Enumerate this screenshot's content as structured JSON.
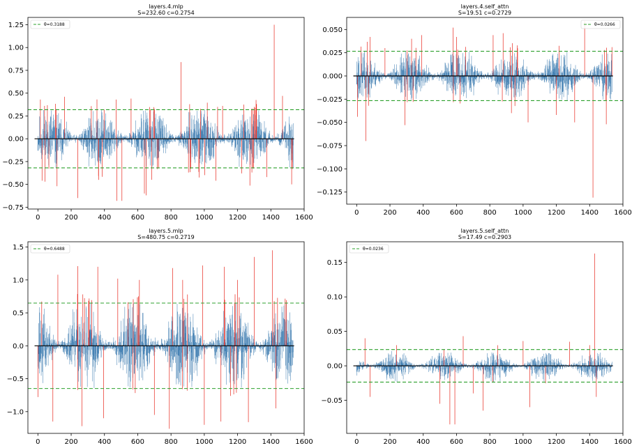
{
  "colors": {
    "signal": "#4682b4",
    "exceed": "#e8281e",
    "threshold": "#2ca02c",
    "zero": "#000000"
  },
  "chart_data": [
    {
      "type": "line",
      "title": "layers.4.mlp",
      "subtitle": "S=232.60 c=0.2754",
      "legend": "θ=0.3188",
      "legend_position": "top-left",
      "threshold": 0.3188,
      "n": 1536,
      "xlim": [
        -60,
        1600
      ],
      "ylim": [
        -0.77,
        1.33
      ],
      "xticks": [
        0,
        200,
        400,
        600,
        800,
        1000,
        1200,
        1400,
        1600
      ],
      "yticks": [
        -0.75,
        -0.5,
        -0.25,
        0.0,
        0.25,
        0.5,
        0.75,
        1.0,
        1.25
      ],
      "ytick_labels": [
        "−0.75",
        "−0.50",
        "−0.25",
        "0.00",
        "0.25",
        "0.50",
        "0.75",
        "1.00",
        "1.25"
      ],
      "amplitude": 0.19,
      "peaks": [
        [
          15,
          0.43
        ],
        [
          25,
          -0.46
        ],
        [
          40,
          0.36
        ],
        [
          115,
          -0.52
        ],
        [
          160,
          0.46
        ],
        [
          240,
          -0.65
        ],
        [
          365,
          -0.45
        ],
        [
          470,
          0.43
        ],
        [
          475,
          -0.68
        ],
        [
          505,
          -0.68
        ],
        [
          560,
          0.44
        ],
        [
          640,
          -0.6
        ],
        [
          650,
          -0.62
        ],
        [
          860,
          0.84
        ],
        [
          905,
          -0.37
        ],
        [
          1070,
          -0.46
        ],
        [
          1080,
          0.35
        ],
        [
          1110,
          0.36
        ],
        [
          1225,
          -0.38
        ],
        [
          1375,
          -0.42
        ],
        [
          1420,
          1.25
        ],
        [
          1470,
          0.47
        ],
        [
          1525,
          -0.5
        ]
      ],
      "seed": 11
    },
    {
      "type": "line",
      "title": "layers.4.self_attn",
      "subtitle": "S=19.51 c=0.2729",
      "legend": "θ=0.0266",
      "legend_position": "top-right",
      "threshold": 0.0266,
      "n": 1536,
      "xlim": [
        -60,
        1600
      ],
      "ylim": [
        -0.138,
        0.063
      ],
      "xticks": [
        0,
        200,
        400,
        600,
        800,
        1000,
        1200,
        1400,
        1600
      ],
      "yticks": [
        -0.125,
        -0.1,
        -0.075,
        -0.05,
        -0.025,
        0.0,
        0.025,
        0.05
      ],
      "ytick_labels": [
        "−0.125",
        "−0.100",
        "−0.075",
        "−0.050",
        "−0.025",
        "0.000",
        "0.025",
        "0.050"
      ],
      "amplitude": 0.015,
      "peaks": [
        [
          5,
          -0.044
        ],
        [
          55,
          -0.07
        ],
        [
          80,
          0.042
        ],
        [
          170,
          0.03
        ],
        [
          290,
          -0.053
        ],
        [
          330,
          0.04
        ],
        [
          390,
          0.044
        ],
        [
          580,
          0.052
        ],
        [
          600,
          0.042
        ],
        [
          820,
          0.044
        ],
        [
          880,
          0.046
        ],
        [
          930,
          -0.04
        ],
        [
          1030,
          -0.05
        ],
        [
          1200,
          -0.042
        ],
        [
          1310,
          -0.05
        ],
        [
          1370,
          0.059
        ],
        [
          1420,
          -0.131
        ],
        [
          1500,
          -0.052
        ]
      ],
      "seed": 23
    },
    {
      "type": "line",
      "title": "layers.5.mlp",
      "subtitle": "S=480.75 c=0.2719",
      "legend": "θ=0.6488",
      "legend_position": "top-left",
      "threshold": 0.6488,
      "n": 1536,
      "xlim": [
        -60,
        1600
      ],
      "ylim": [
        -1.33,
        1.58
      ],
      "xticks": [
        0,
        200,
        400,
        600,
        800,
        1000,
        1200,
        1400,
        1600
      ],
      "yticks": [
        -1.0,
        -0.5,
        0.0,
        0.5,
        1.0,
        1.5
      ],
      "ytick_labels": [
        "−1.0",
        "−0.5",
        "0.0",
        "0.5",
        "1.0",
        "1.5"
      ],
      "amplitude": 0.36,
      "peaks": [
        [
          90,
          -1.15
        ],
        [
          120,
          1.08
        ],
        [
          240,
          1.21
        ],
        [
          265,
          -1.22
        ],
        [
          360,
          1.2
        ],
        [
          395,
          -1.1
        ],
        [
          480,
          1.02
        ],
        [
          610,
          1.0
        ],
        [
          700,
          -1.05
        ],
        [
          790,
          -1.26
        ],
        [
          810,
          1.18
        ],
        [
          870,
          1.0
        ],
        [
          990,
          1.22
        ],
        [
          1000,
          -1.2
        ],
        [
          1100,
          -1.15
        ],
        [
          1120,
          1.2
        ],
        [
          1200,
          1.0
        ],
        [
          1265,
          -1.16
        ],
        [
          1300,
          1.35
        ],
        [
          1410,
          1.45
        ],
        [
          1430,
          -0.95
        ]
      ],
      "seed": 37
    },
    {
      "type": "line",
      "title": "layers.5.self_attn",
      "subtitle": "S=17.49 c=0.2903",
      "legend": "θ=0.0236",
      "legend_position": "top-left",
      "threshold": 0.0236,
      "n": 1536,
      "xlim": [
        -60,
        1600
      ],
      "ylim": [
        -0.098,
        0.18
      ],
      "xticks": [
        0,
        200,
        400,
        600,
        800,
        1000,
        1200,
        1400,
        1600
      ],
      "yticks": [
        -0.05,
        0.0,
        0.05,
        0.1,
        0.15
      ],
      "ytick_labels": [
        "−0.05",
        "0.00",
        "0.05",
        "0.10",
        "0.15"
      ],
      "amplitude": 0.011,
      "peaks": [
        [
          50,
          0.04
        ],
        [
          80,
          -0.045
        ],
        [
          240,
          0.03
        ],
        [
          500,
          -0.055
        ],
        [
          560,
          -0.085
        ],
        [
          590,
          -0.085
        ],
        [
          640,
          0.043
        ],
        [
          700,
          -0.04
        ],
        [
          760,
          -0.065
        ],
        [
          1000,
          0.036
        ],
        [
          1040,
          -0.06
        ],
        [
          1280,
          0.035
        ],
        [
          1400,
          0.03
        ],
        [
          1430,
          0.163
        ],
        [
          1440,
          -0.045
        ]
      ],
      "seed": 53
    }
  ]
}
